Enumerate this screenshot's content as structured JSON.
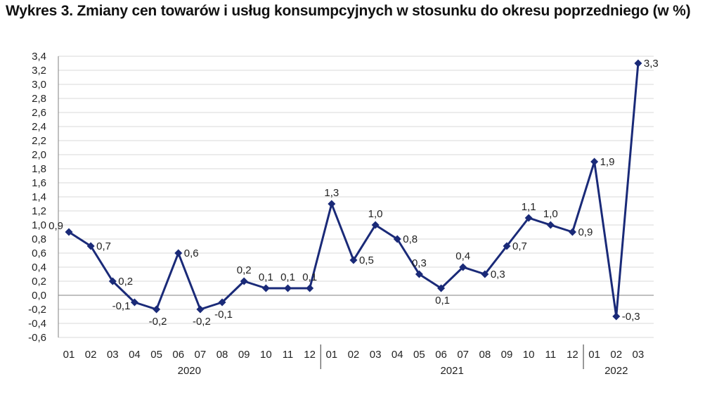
{
  "page": {
    "title": "Wykres 3. Zmiany cen towarów i usług konsumpcyjnych w stosunku do okresu poprzedniego (w %)"
  },
  "chart_data": {
    "type": "line",
    "title": "Wykres 3. Zmiany cen towarów i usług konsumpcyjnych w stosunku do okresu poprzedniego (w %)",
    "xlabel": "",
    "ylabel": "",
    "ylim": [
      -0.6,
      3.4
    ],
    "ytick_step": 0.2,
    "grid": true,
    "colors": {
      "series": "#1a2a78",
      "grid": "#d9d9d9",
      "axis": "#808080"
    },
    "categories": [
      "01",
      "02",
      "03",
      "04",
      "05",
      "06",
      "07",
      "08",
      "09",
      "10",
      "11",
      "12",
      "01",
      "02",
      "03",
      "04",
      "05",
      "06",
      "07",
      "08",
      "09",
      "10",
      "11",
      "12",
      "01",
      "02",
      "03"
    ],
    "years": [
      {
        "label": "2020",
        "count": 12
      },
      {
        "label": "2021",
        "count": 12
      },
      {
        "label": "2022",
        "count": 3
      }
    ],
    "series": [
      {
        "values": [
          0.9,
          0.7,
          0.2,
          -0.1,
          -0.2,
          0.6,
          -0.2,
          -0.1,
          0.2,
          0.1,
          0.1,
          0.1,
          1.3,
          0.5,
          1.0,
          0.8,
          0.3,
          0.1,
          0.4,
          0.3,
          0.7,
          1.1,
          1.0,
          0.9,
          1.9,
          -0.3,
          3.3
        ]
      }
    ],
    "data_labels": [
      "0,9",
      "0,7",
      "0,2",
      "-0,1",
      "-0,2",
      "0,6",
      "-0,2",
      "-0,1",
      "0,2",
      "0,1",
      "0,1",
      "0,1",
      "1,3",
      "0,5",
      "1,0",
      "0,8",
      "0,3",
      "0,1",
      "0,4",
      "0,3",
      "0,7",
      "1,1",
      "1,0",
      "0,9",
      "1,9",
      "-0,3",
      "3,3"
    ],
    "ytick_labels": [
      "-0,6",
      "-0,4",
      "-0,2",
      "0,0",
      "0,2",
      "0,4",
      "0,6",
      "0,8",
      "1,0",
      "1,2",
      "1,4",
      "1,6",
      "1,8",
      "2,0",
      "2,2",
      "2,4",
      "2,6",
      "2,8",
      "3,0",
      "3,2",
      "3,4"
    ]
  }
}
